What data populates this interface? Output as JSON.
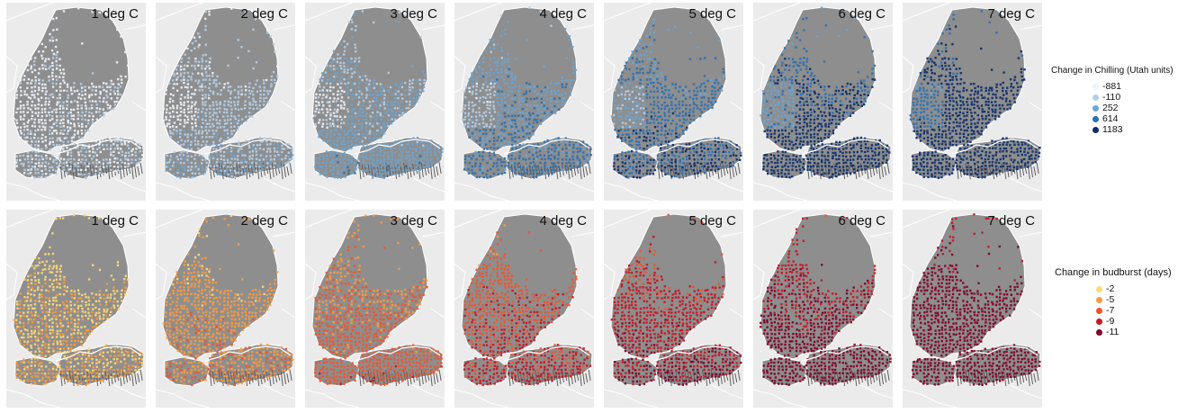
{
  "rows": [
    {
      "name": "chilling",
      "panels": [
        {
          "label": "1 deg C",
          "level": 1
        },
        {
          "label": "2 deg C",
          "level": 2
        },
        {
          "label": "3 deg C",
          "level": 3
        },
        {
          "label": "4 deg C",
          "level": 4
        },
        {
          "label": "5 deg C",
          "level": 5
        },
        {
          "label": "6 deg C",
          "level": 6
        },
        {
          "label": "7 deg C",
          "level": 7
        }
      ],
      "legend": {
        "title": "Change in Chilling (Utah units)",
        "items": [
          {
            "label": "-881",
            "color": "#eef3fb"
          },
          {
            "label": "-110",
            "color": "#b3cfe8"
          },
          {
            "label": "252",
            "color": "#6aa6d6"
          },
          {
            "label": "614",
            "color": "#2a70b3"
          },
          {
            "label": "1183",
            "color": "#0b2e6b"
          }
        ]
      }
    },
    {
      "name": "budburst",
      "panels": [
        {
          "label": "1 deg C",
          "level": 1
        },
        {
          "label": "2 deg C",
          "level": 2
        },
        {
          "label": "3 deg C",
          "level": 3
        },
        {
          "label": "4 deg C",
          "level": 4
        },
        {
          "label": "5 deg C",
          "level": 5
        },
        {
          "label": "6 deg C",
          "level": 6
        },
        {
          "label": "7 deg C",
          "level": 7
        }
      ],
      "legend": {
        "title": "Change in budburst (days)",
        "items": [
          {
            "label": "-2",
            "color": "#fed976"
          },
          {
            "label": "-5",
            "color": "#fd9b3f"
          },
          {
            "label": "-7",
            "color": "#f0522b"
          },
          {
            "label": "-9",
            "color": "#c9141f"
          },
          {
            "label": "-11",
            "color": "#800026"
          }
        ]
      }
    }
  ],
  "colors": {
    "panel_background": "#ebebeb",
    "terrain": "#8e8e8e",
    "borders": "#ffffff",
    "chilling_ramp": [
      "#eef3fb",
      "#b3cfe8",
      "#6aa6d6",
      "#2a70b3",
      "#0b2e6b"
    ],
    "budburst_ramp": [
      "#fed976",
      "#fd9b3f",
      "#f0522b",
      "#c9141f",
      "#800026"
    ]
  }
}
